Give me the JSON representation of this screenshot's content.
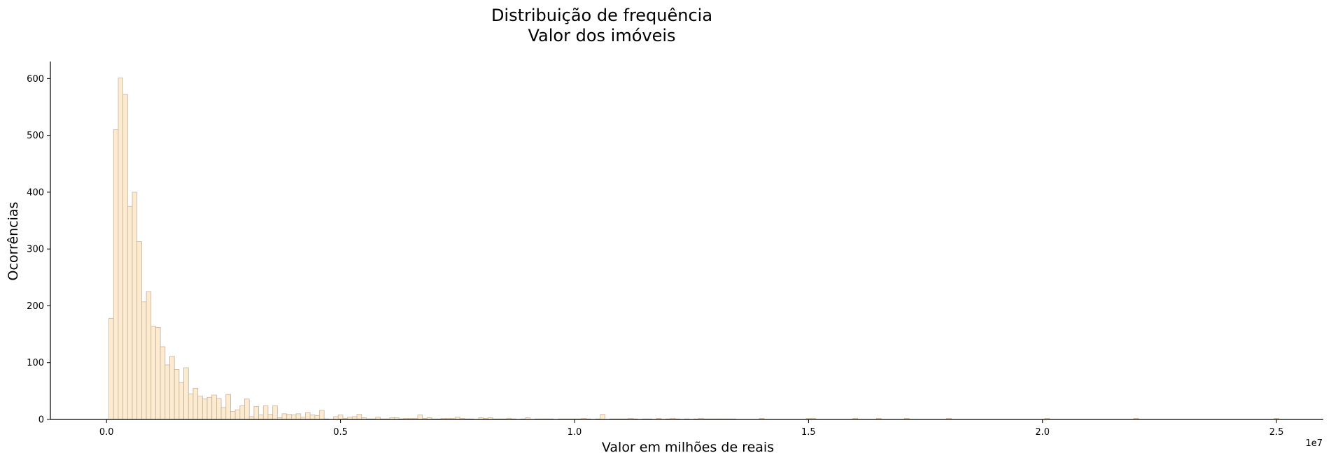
{
  "chart_data": {
    "type": "bar",
    "title_line1": "Distribuição de frequência",
    "title_line2": "Valor dos imóveis",
    "xlabel": "Valor em milhões de reais",
    "ylabel": "Ocorrências",
    "offset_label": "1e7",
    "xlim": [
      -0.12,
      2.6
    ],
    "ylim": [
      0,
      630
    ],
    "x_ticks": [
      0.0,
      0.5,
      1.0,
      1.5,
      2.0,
      2.5
    ],
    "x_tick_labels": [
      "0.0",
      "0.5",
      "1.0",
      "1.5",
      "2.0",
      "2.5"
    ],
    "y_ticks": [
      0,
      100,
      200,
      300,
      400,
      500,
      600
    ],
    "y_tick_labels": [
      "0",
      "100",
      "200",
      "300",
      "400",
      "500",
      "600"
    ],
    "bin_width": 0.01,
    "bin_starts": [
      0.005,
      0.015,
      0.025,
      0.035,
      0.045,
      0.055,
      0.065,
      0.075,
      0.085,
      0.095,
      0.105,
      0.115,
      0.125,
      0.135,
      0.145,
      0.155,
      0.165,
      0.175,
      0.185,
      0.195,
      0.205,
      0.215,
      0.225,
      0.235,
      0.245,
      0.255,
      0.265,
      0.275,
      0.285,
      0.295,
      0.305,
      0.315,
      0.325,
      0.335,
      0.345,
      0.355,
      0.365,
      0.375,
      0.385,
      0.395,
      0.405,
      0.415,
      0.425,
      0.435,
      0.445,
      0.455,
      0.465,
      0.475,
      0.485,
      0.495,
      0.505,
      0.515,
      0.525,
      0.535,
      0.545,
      0.555,
      0.565,
      0.575,
      0.585,
      0.595,
      0.605,
      0.615,
      0.625,
      0.635,
      0.645,
      0.655,
      0.665,
      0.675,
      0.685,
      0.695,
      0.705,
      0.715,
      0.725,
      0.735,
      0.745,
      0.755,
      0.765,
      0.775,
      0.785,
      0.795,
      0.805,
      0.815,
      0.825,
      0.835,
      0.845,
      0.855,
      0.865,
      0.875,
      0.885,
      0.895,
      0.905,
      0.915,
      0.925,
      0.935,
      0.945,
      0.955,
      0.965,
      0.975,
      0.985,
      0.995,
      1.005,
      1.015,
      1.025,
      1.035,
      1.045,
      1.055,
      1.065,
      1.075,
      1.085,
      1.095,
      1.105,
      1.115,
      1.125,
      1.135,
      1.145,
      1.155,
      1.165,
      1.175,
      1.185,
      1.195,
      1.205,
      1.215,
      1.225,
      1.235,
      1.245,
      1.255,
      1.265,
      1.275,
      1.285,
      1.295,
      1.305,
      1.315,
      1.325,
      1.335,
      1.395,
      1.495,
      1.505,
      1.595,
      1.645,
      1.705,
      1.795,
      2.005,
      2.195,
      2.495
    ],
    "counts": [
      178,
      510,
      601,
      572,
      375,
      400,
      313,
      207,
      225,
      164,
      162,
      128,
      96,
      111,
      88,
      65,
      91,
      45,
      55,
      41,
      36,
      39,
      43,
      37,
      21,
      44,
      14,
      17,
      24,
      36,
      5,
      23,
      8,
      24,
      9,
      24,
      3,
      10,
      9,
      8,
      10,
      4,
      12,
      8,
      7,
      16,
      1,
      0,
      5,
      8,
      2,
      4,
      5,
      9,
      3,
      1,
      1,
      4,
      1,
      1,
      3,
      3,
      1,
      2,
      2,
      2,
      8,
      2,
      3,
      1,
      1,
      2,
      2,
      2,
      4,
      2,
      1,
      1,
      0,
      3,
      2,
      3,
      1,
      1,
      1,
      2,
      1,
      0,
      1,
      3,
      0,
      1,
      1,
      1,
      1,
      0,
      1,
      1,
      1,
      1,
      1,
      2,
      1,
      0,
      1,
      9,
      0,
      1,
      1,
      1,
      1,
      2,
      1,
      0,
      1,
      1,
      0,
      2,
      0,
      1,
      2,
      1,
      0,
      1,
      0,
      1,
      2,
      1,
      1,
      1,
      1,
      1,
      1,
      1,
      2,
      2,
      2,
      2,
      2,
      2,
      2,
      2,
      2,
      2
    ]
  }
}
